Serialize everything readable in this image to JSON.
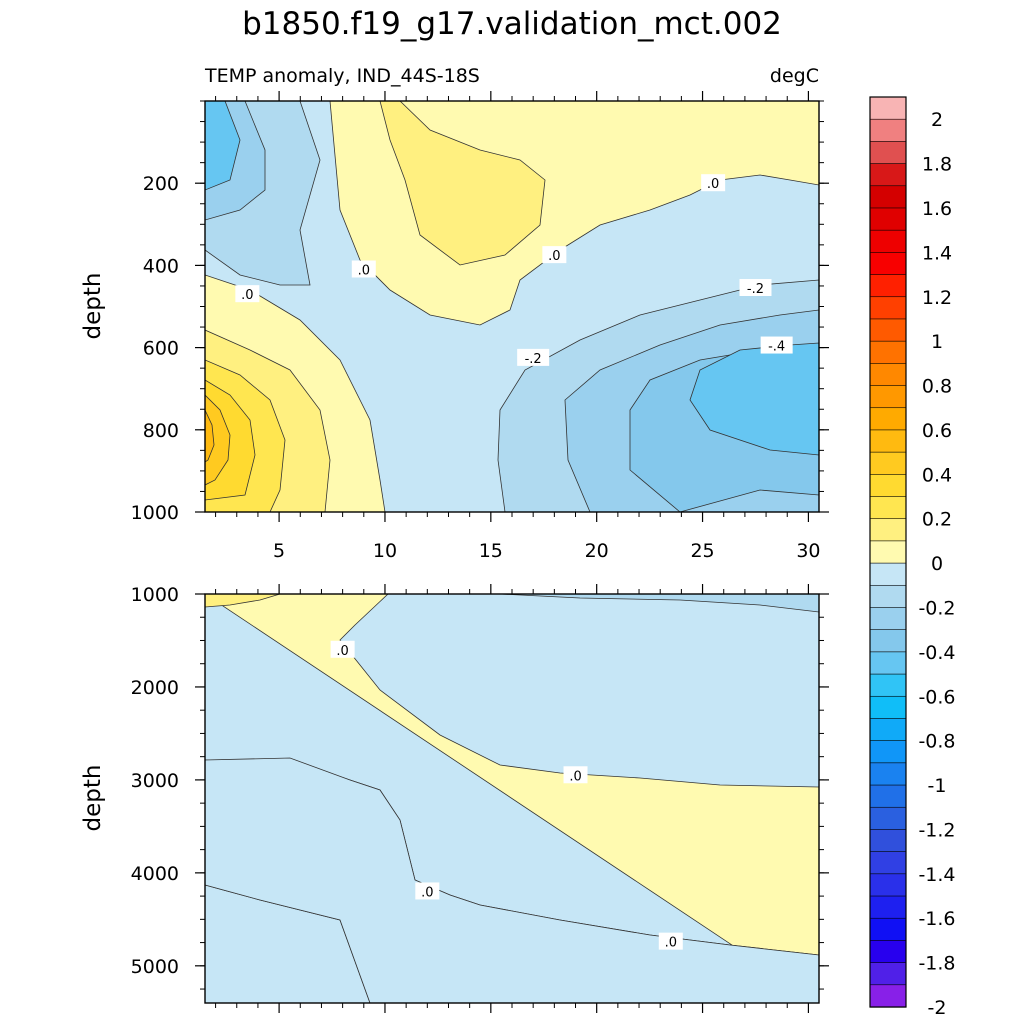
{
  "chart_data": {
    "type": "contour",
    "title": "b1850.f19_g17.validation_mct.002",
    "variable_label": "TEMP anomaly, IND_44S-18S",
    "units": "degC",
    "x_ticks": [
      "5",
      "10",
      "15",
      "20",
      "25",
      "30"
    ],
    "x_tick_values": [
      5,
      10,
      15,
      20,
      25,
      30
    ],
    "xlim": [
      1.5,
      30.5
    ],
    "panels": [
      {
        "name": "upper",
        "ylabel": "depth",
        "ylim": [
          0,
          1000
        ],
        "y_ticks": [
          "200",
          "400",
          "600",
          "800",
          "1000"
        ],
        "y_tick_values": [
          200,
          400,
          600,
          800,
          1000
        ],
        "contour_labels": [
          {
            "text": ".0",
            "x": 3.5,
            "y": 470
          },
          {
            "text": ".0",
            "x": 9.0,
            "y": 410
          },
          {
            "text": ".0",
            "x": 18.0,
            "y": 375
          },
          {
            "text": ".0",
            "x": 25.5,
            "y": 200
          },
          {
            "text": "-.2",
            "x": 17.0,
            "y": 625
          },
          {
            "text": "-.2",
            "x": 27.5,
            "y": 455
          },
          {
            "text": "-.4",
            "x": 28.5,
            "y": 595
          }
        ]
      },
      {
        "name": "lower",
        "ylabel": "depth",
        "ylim": [
          1000,
          5400
        ],
        "y_ticks": [
          "1000",
          "2000",
          "3000",
          "4000",
          "5000"
        ],
        "y_tick_values": [
          1000,
          2000,
          3000,
          4000,
          5000
        ],
        "contour_labels": [
          {
            "text": ".0",
            "x": 8.0,
            "y": 1600
          },
          {
            "text": ".0",
            "x": 19.0,
            "y": 2950
          },
          {
            "text": ".0",
            "x": 12.0,
            "y": 4200
          },
          {
            "text": ".0",
            "x": 23.5,
            "y": 4740
          }
        ]
      }
    ],
    "colorbar": {
      "labels": [
        "2",
        "1.8",
        "1.6",
        "1.4",
        "1.2",
        "1",
        "0.8",
        "0.6",
        "0.4",
        "0.2",
        "0",
        "-0.2",
        "-0.4",
        "-0.6",
        "-0.8",
        "-1",
        "-1.2",
        "-1.4",
        "-1.6",
        "-1.8",
        "-2"
      ],
      "colors": [
        "#f8b4b4",
        "#f08080",
        "#e05050",
        "#d81818",
        "#d40000",
        "#e00000",
        "#ee0000",
        "#f80000",
        "#ff2000",
        "#ff4000",
        "#ff5a00",
        "#ff7200",
        "#ff8800",
        "#ff9800",
        "#ffaa00",
        "#ffba10",
        "#ffca20",
        "#ffda30",
        "#ffe650",
        "#fff080",
        "#fffab0",
        "#c6e6f6",
        "#b0daf0",
        "#9ad0ee",
        "#84c8ec",
        "#66c6f2",
        "#30c4f6",
        "#10bef8",
        "#10aaf8",
        "#1096f8",
        "#1a82f0",
        "#2070e8",
        "#2a60e0",
        "#3050dc",
        "#3040e4",
        "#2a30ea",
        "#1e20f0",
        "#1010f4",
        "#2800ee",
        "#5020e8",
        "#8820e8"
      ]
    }
  }
}
